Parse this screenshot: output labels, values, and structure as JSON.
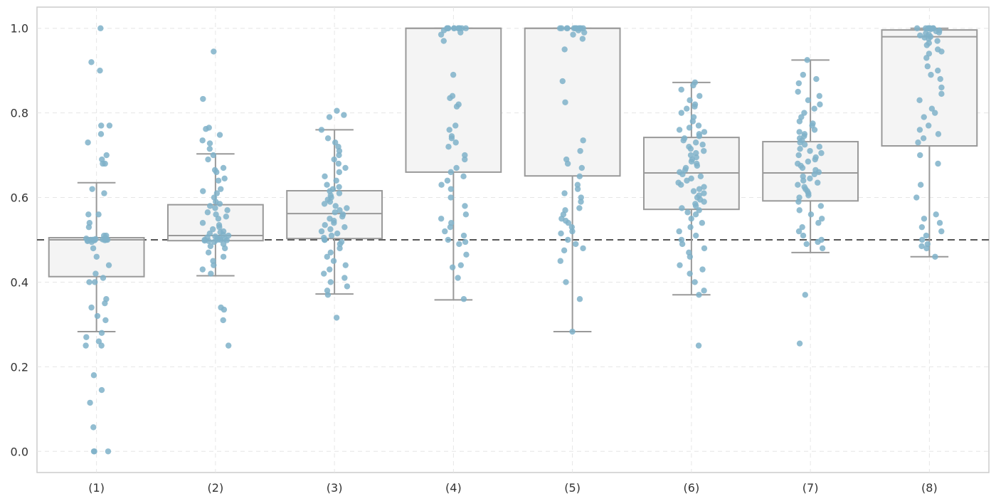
{
  "chart_data": {
    "type": "box",
    "categories": [
      "(1)",
      "(2)",
      "(3)",
      "(4)",
      "(5)",
      "(6)",
      "(7)",
      "(8)"
    ],
    "ylim": [
      -0.05,
      1.05
    ],
    "yticks": [
      "0.0",
      "0.2",
      "0.4",
      "0.6",
      "0.8",
      "1.0"
    ],
    "ytick_values": [
      0.0,
      0.2,
      0.4,
      0.6,
      0.8,
      1.0
    ],
    "grid": true,
    "reference_line": 0.5,
    "box_color": "#f4f4f4",
    "box_edge_color": "#999999",
    "point_color": "#7fb2c9",
    "reference_color": "#555555",
    "boxes": [
      {
        "label": "(1)",
        "whisker_low": 0.283,
        "q1": 0.413,
        "median": 0.5,
        "q3": 0.505,
        "whisker_high": 0.635
      },
      {
        "label": "(2)",
        "whisker_low": 0.415,
        "q1": 0.498,
        "median": 0.51,
        "q3": 0.583,
        "whisker_high": 0.703
      },
      {
        "label": "(3)",
        "whisker_low": 0.372,
        "q1": 0.503,
        "median": 0.562,
        "q3": 0.616,
        "whisker_high": 0.76
      },
      {
        "label": "(4)",
        "whisker_low": 0.358,
        "q1": 0.66,
        "median": 1.0,
        "q3": 1.0,
        "whisker_high": 1.0
      },
      {
        "label": "(5)",
        "whisker_low": 0.283,
        "q1": 0.651,
        "median": 1.0,
        "q3": 1.0,
        "whisker_high": 1.0
      },
      {
        "label": "(6)",
        "whisker_low": 0.37,
        "q1": 0.572,
        "median": 0.658,
        "q3": 0.742,
        "whisker_high": 0.872
      },
      {
        "label": "(7)",
        "whisker_low": 0.47,
        "q1": 0.592,
        "median": 0.658,
        "q3": 0.732,
        "whisker_high": 0.925
      },
      {
        "label": "(8)",
        "whisker_low": 0.46,
        "q1": 0.722,
        "median": 0.98,
        "q3": 0.996,
        "whisker_high": 1.0
      }
    ],
    "points": [
      [
        1.0,
        0.92,
        0.9,
        0.77,
        0.77,
        0.75,
        0.73,
        0.7,
        0.69,
        0.68,
        0.68,
        0.62,
        0.61,
        0.56,
        0.56,
        0.54,
        0.53,
        0.51,
        0.51,
        0.505,
        0.503,
        0.502,
        0.501,
        0.5,
        0.5,
        0.5,
        0.5,
        0.5,
        0.5,
        0.499,
        0.499,
        0.498,
        0.497,
        0.495,
        0.48,
        0.46,
        0.44,
        0.42,
        0.41,
        0.4,
        0.4,
        0.36,
        0.35,
        0.34,
        0.32,
        0.31,
        0.28,
        0.27,
        0.26,
        0.25,
        0.25,
        0.18,
        0.145,
        0.115,
        0.057,
        0.0,
        0.0,
        0.0
      ],
      [
        0.945,
        0.833,
        0.765,
        0.762,
        0.748,
        0.735,
        0.728,
        0.715,
        0.7,
        0.69,
        0.67,
        0.665,
        0.66,
        0.645,
        0.64,
        0.62,
        0.615,
        0.61,
        0.6,
        0.59,
        0.585,
        0.58,
        0.575,
        0.57,
        0.565,
        0.56,
        0.555,
        0.55,
        0.54,
        0.535,
        0.53,
        0.525,
        0.52,
        0.518,
        0.515,
        0.512,
        0.51,
        0.508,
        0.506,
        0.505,
        0.503,
        0.502,
        0.5,
        0.5,
        0.5,
        0.499,
        0.498,
        0.497,
        0.495,
        0.49,
        0.485,
        0.48,
        0.47,
        0.46,
        0.45,
        0.44,
        0.43,
        0.42,
        0.34,
        0.335,
        0.31,
        0.25
      ],
      [
        0.805,
        0.795,
        0.79,
        0.76,
        0.74,
        0.73,
        0.72,
        0.71,
        0.7,
        0.69,
        0.68,
        0.67,
        0.66,
        0.65,
        0.64,
        0.63,
        0.625,
        0.62,
        0.615,
        0.61,
        0.605,
        0.6,
        0.595,
        0.59,
        0.585,
        0.58,
        0.575,
        0.57,
        0.565,
        0.56,
        0.555,
        0.55,
        0.545,
        0.54,
        0.535,
        0.53,
        0.525,
        0.52,
        0.515,
        0.51,
        0.505,
        0.5,
        0.5,
        0.5,
        0.495,
        0.49,
        0.48,
        0.47,
        0.46,
        0.45,
        0.44,
        0.43,
        0.42,
        0.41,
        0.4,
        0.39,
        0.38,
        0.37,
        0.316
      ],
      [
        1.0,
        1.0,
        1.0,
        1.0,
        1.0,
        1.0,
        1.0,
        1.0,
        1.0,
        1.0,
        1.0,
        1.0,
        0.995,
        0.99,
        0.985,
        0.97,
        0.89,
        0.84,
        0.835,
        0.82,
        0.815,
        0.77,
        0.76,
        0.745,
        0.74,
        0.73,
        0.72,
        0.7,
        0.69,
        0.67,
        0.66,
        0.65,
        0.64,
        0.63,
        0.62,
        0.6,
        0.58,
        0.56,
        0.55,
        0.54,
        0.53,
        0.52,
        0.51,
        0.5,
        0.495,
        0.49,
        0.465,
        0.44,
        0.435,
        0.41,
        0.36
      ],
      [
        1.0,
        1.0,
        1.0,
        1.0,
        1.0,
        1.0,
        1.0,
        1.0,
        1.0,
        1.0,
        1.0,
        1.0,
        0.995,
        0.99,
        0.985,
        0.975,
        0.95,
        0.875,
        0.825,
        0.735,
        0.71,
        0.69,
        0.68,
        0.67,
        0.65,
        0.63,
        0.62,
        0.61,
        0.6,
        0.59,
        0.575,
        0.57,
        0.56,
        0.55,
        0.545,
        0.54,
        0.53,
        0.52,
        0.515,
        0.5,
        0.49,
        0.48,
        0.475,
        0.45,
        0.4,
        0.36,
        0.283
      ],
      [
        0.872,
        0.865,
        0.855,
        0.84,
        0.83,
        0.82,
        0.815,
        0.81,
        0.8,
        0.79,
        0.78,
        0.77,
        0.765,
        0.76,
        0.755,
        0.75,
        0.745,
        0.74,
        0.735,
        0.73,
        0.725,
        0.72,
        0.715,
        0.71,
        0.705,
        0.7,
        0.695,
        0.69,
        0.685,
        0.68,
        0.675,
        0.67,
        0.665,
        0.66,
        0.655,
        0.65,
        0.645,
        0.64,
        0.635,
        0.63,
        0.625,
        0.62,
        0.615,
        0.61,
        0.605,
        0.6,
        0.595,
        0.59,
        0.585,
        0.58,
        0.575,
        0.57,
        0.565,
        0.56,
        0.55,
        0.54,
        0.53,
        0.52,
        0.51,
        0.5,
        0.49,
        0.48,
        0.47,
        0.46,
        0.44,
        0.43,
        0.42,
        0.4,
        0.38,
        0.37,
        0.25
      ],
      [
        0.925,
        0.89,
        0.88,
        0.87,
        0.85,
        0.84,
        0.83,
        0.82,
        0.81,
        0.8,
        0.79,
        0.78,
        0.775,
        0.77,
        0.76,
        0.755,
        0.75,
        0.745,
        0.74,
        0.735,
        0.73,
        0.725,
        0.72,
        0.715,
        0.71,
        0.705,
        0.7,
        0.695,
        0.69,
        0.685,
        0.68,
        0.675,
        0.67,
        0.665,
        0.66,
        0.655,
        0.65,
        0.645,
        0.64,
        0.635,
        0.63,
        0.625,
        0.62,
        0.615,
        0.61,
        0.605,
        0.6,
        0.59,
        0.58,
        0.57,
        0.56,
        0.55,
        0.54,
        0.53,
        0.52,
        0.51,
        0.5,
        0.495,
        0.49,
        0.48,
        0.37,
        0.255
      ],
      [
        1.0,
        1.0,
        1.0,
        1.0,
        1.0,
        1.0,
        1.0,
        1.0,
        0.998,
        0.995,
        0.993,
        0.99,
        0.988,
        0.985,
        0.983,
        0.98,
        0.978,
        0.975,
        0.97,
        0.965,
        0.96,
        0.95,
        0.945,
        0.94,
        0.93,
        0.91,
        0.9,
        0.89,
        0.88,
        0.86,
        0.845,
        0.83,
        0.81,
        0.8,
        0.79,
        0.77,
        0.76,
        0.75,
        0.74,
        0.73,
        0.7,
        0.68,
        0.63,
        0.6,
        0.56,
        0.55,
        0.54,
        0.53,
        0.52,
        0.51,
        0.5,
        0.49,
        0.485,
        0.48,
        0.46
      ]
    ]
  }
}
